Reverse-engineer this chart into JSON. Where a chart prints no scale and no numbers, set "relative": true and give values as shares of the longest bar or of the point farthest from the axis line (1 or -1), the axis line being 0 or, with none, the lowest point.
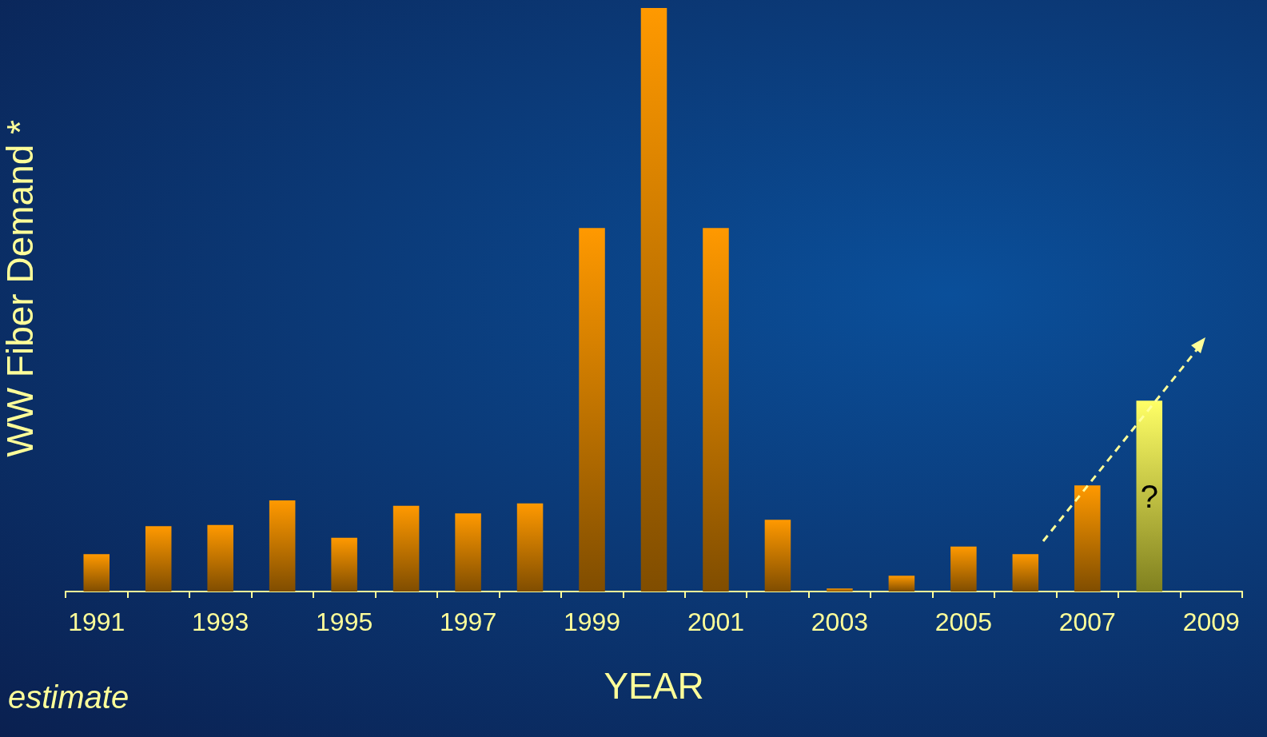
{
  "chart_data": {
    "type": "bar",
    "relative": true,
    "xlabel": "YEAR",
    "ylabel": "WW Fiber Demand *",
    "categories": [
      "1991",
      null,
      "1993",
      null,
      "1995",
      null,
      "1997",
      null,
      "1999",
      null,
      "2001",
      null,
      "2003",
      null,
      "2005",
      null,
      "2007",
      null,
      "2009"
    ],
    "values": [
      0.064,
      0.112,
      0.114,
      0.156,
      0.092,
      0.147,
      0.134,
      0.151,
      0.623,
      1,
      0.623,
      0.123,
      0.005,
      0.027,
      0.077,
      0.064,
      0.182,
      0.327,
      null
    ],
    "colors": [
      "#ff9900",
      "#ff9900",
      "#ff9900",
      "#ff9900",
      "#ff9900",
      "#ff9900",
      "#ff9900",
      "#ff9900",
      "#ff9900",
      "#ff9900",
      "#ff9900",
      "#ff9900",
      "#ff9900",
      "#ff9900",
      "#ff9900",
      "#ff9900",
      "#ff9900",
      "#ffff66",
      "#ff9900"
    ],
    "annotations": [
      "?",
      "estimate"
    ],
    "grid": false
  }
}
